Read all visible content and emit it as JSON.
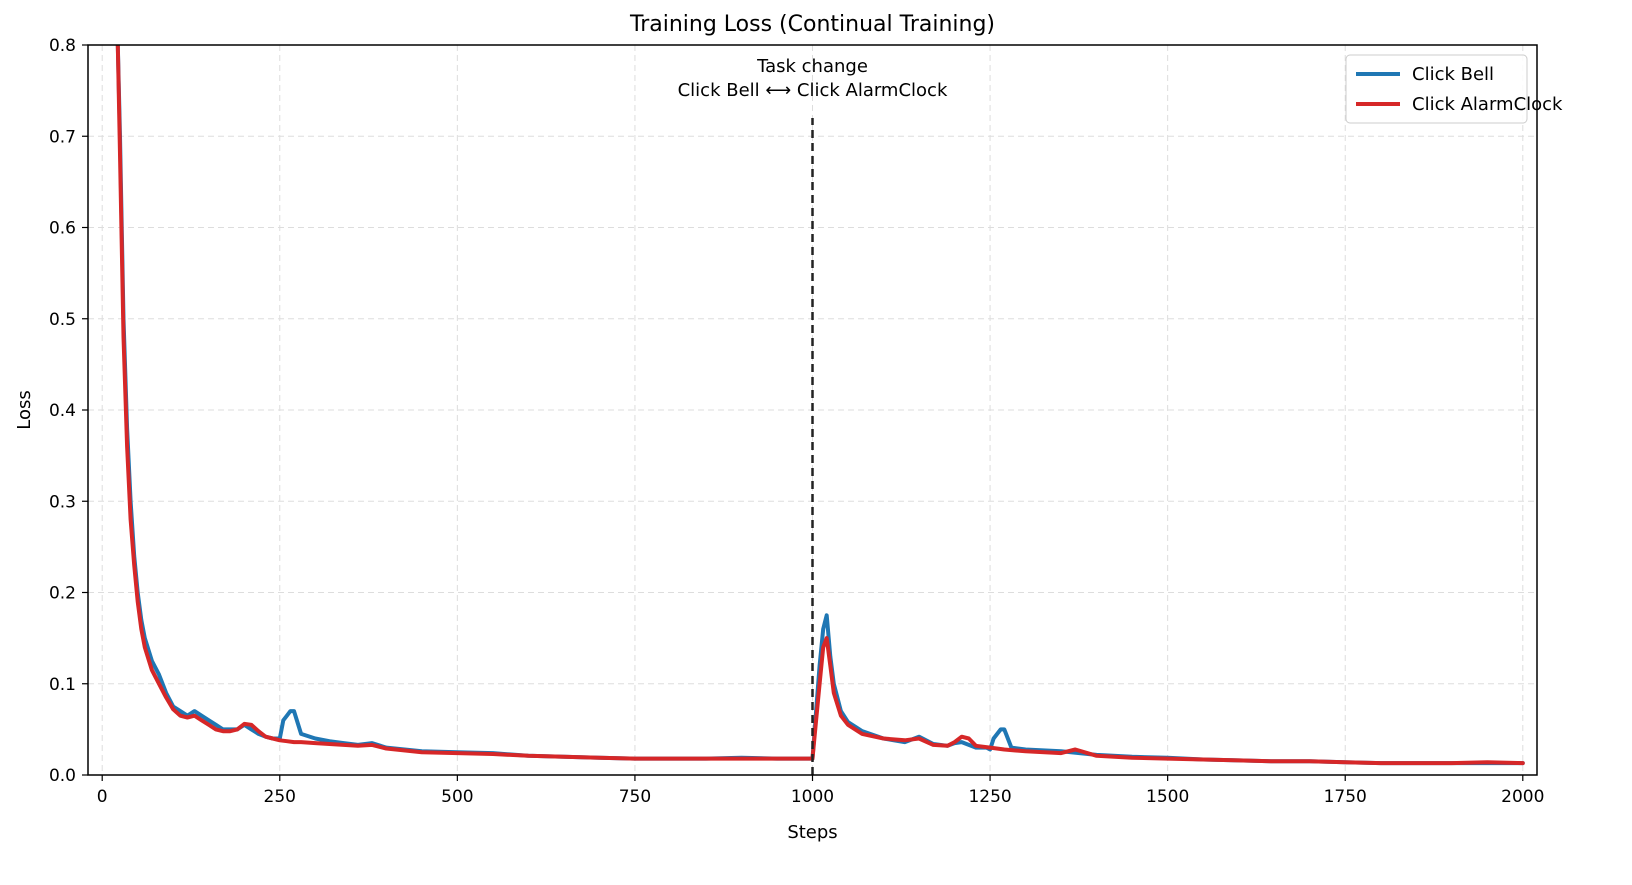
{
  "chart_data": {
    "type": "line",
    "title": "Training Loss (Continual Training)",
    "xlabel": "Steps",
    "ylabel": "Loss",
    "xlim": [
      -20,
      2020
    ],
    "ylim": [
      0.0,
      0.8
    ],
    "xticks": [
      0,
      250,
      500,
      750,
      1000,
      1250,
      1500,
      1750,
      2000
    ],
    "yticks": [
      0.0,
      0.1,
      0.2,
      0.3,
      0.4,
      0.5,
      0.6,
      0.7,
      0.8
    ],
    "xtick_labels": [
      "0",
      "250",
      "500",
      "750",
      "1000",
      "1250",
      "1500",
      "1750",
      "2000"
    ],
    "ytick_labels": [
      "0.0",
      "0.1",
      "0.2",
      "0.3",
      "0.4",
      "0.5",
      "0.6",
      "0.7",
      "0.8"
    ],
    "grid": true,
    "legend_position": "top-right",
    "annotation": {
      "line1": "Task change",
      "line2": "Click Bell ⟷ Click AlarmClock",
      "x": 1000,
      "y_from": 0.0,
      "y_to": 0.72
    },
    "series": [
      {
        "name": "Click Bell",
        "color": "#1f77b4",
        "x": [
          22,
          25,
          30,
          35,
          40,
          45,
          50,
          55,
          60,
          70,
          80,
          90,
          100,
          110,
          120,
          130,
          140,
          150,
          160,
          170,
          180,
          190,
          200,
          210,
          220,
          230,
          240,
          250,
          255,
          260,
          265,
          270,
          280,
          300,
          320,
          340,
          360,
          380,
          400,
          450,
          500,
          550,
          600,
          650,
          700,
          750,
          800,
          850,
          900,
          950,
          1000,
          1005,
          1010,
          1015,
          1020,
          1025,
          1030,
          1040,
          1050,
          1070,
          1100,
          1130,
          1150,
          1170,
          1190,
          1200,
          1210,
          1230,
          1245,
          1250,
          1255,
          1260,
          1265,
          1270,
          1280,
          1300,
          1350,
          1400,
          1450,
          1500,
          1550,
          1600,
          1650,
          1700,
          1750,
          1800,
          1850,
          1900,
          1950,
          2000
        ],
        "values": [
          0.8,
          0.7,
          0.5,
          0.38,
          0.3,
          0.24,
          0.2,
          0.17,
          0.15,
          0.125,
          0.11,
          0.09,
          0.075,
          0.07,
          0.065,
          0.07,
          0.065,
          0.06,
          0.055,
          0.05,
          0.05,
          0.05,
          0.055,
          0.05,
          0.045,
          0.042,
          0.04,
          0.04,
          0.06,
          0.065,
          0.07,
          0.07,
          0.045,
          0.04,
          0.037,
          0.035,
          0.033,
          0.035,
          0.03,
          0.026,
          0.025,
          0.024,
          0.021,
          0.02,
          0.019,
          0.018,
          0.018,
          0.018,
          0.019,
          0.018,
          0.018,
          0.07,
          0.12,
          0.16,
          0.175,
          0.13,
          0.1,
          0.07,
          0.058,
          0.048,
          0.04,
          0.036,
          0.042,
          0.034,
          0.032,
          0.035,
          0.036,
          0.03,
          0.03,
          0.028,
          0.04,
          0.045,
          0.05,
          0.05,
          0.03,
          0.028,
          0.026,
          0.022,
          0.02,
          0.019,
          0.017,
          0.016,
          0.015,
          0.015,
          0.014,
          0.013,
          0.013,
          0.013,
          0.013,
          0.013
        ]
      },
      {
        "name": "Click AlarmClock",
        "color": "#d62728",
        "x": [
          22,
          25,
          30,
          35,
          40,
          45,
          50,
          55,
          60,
          70,
          80,
          90,
          100,
          110,
          120,
          130,
          140,
          150,
          160,
          170,
          180,
          190,
          200,
          210,
          220,
          230,
          240,
          250,
          260,
          270,
          280,
          300,
          320,
          340,
          360,
          380,
          400,
          450,
          500,
          550,
          600,
          650,
          700,
          750,
          800,
          850,
          900,
          950,
          1000,
          1005,
          1010,
          1015,
          1020,
          1025,
          1030,
          1040,
          1050,
          1070,
          1100,
          1130,
          1150,
          1170,
          1190,
          1200,
          1210,
          1220,
          1230,
          1250,
          1270,
          1300,
          1350,
          1370,
          1400,
          1450,
          1500,
          1550,
          1600,
          1650,
          1700,
          1750,
          1800,
          1850,
          1900,
          1950,
          2000
        ],
        "values": [
          0.8,
          0.68,
          0.48,
          0.36,
          0.28,
          0.23,
          0.19,
          0.16,
          0.14,
          0.115,
          0.1,
          0.085,
          0.072,
          0.065,
          0.063,
          0.065,
          0.06,
          0.055,
          0.05,
          0.048,
          0.048,
          0.05,
          0.056,
          0.055,
          0.048,
          0.042,
          0.04,
          0.038,
          0.037,
          0.036,
          0.036,
          0.035,
          0.034,
          0.033,
          0.032,
          0.033,
          0.029,
          0.025,
          0.024,
          0.023,
          0.021,
          0.02,
          0.019,
          0.018,
          0.018,
          0.018,
          0.018,
          0.018,
          0.018,
          0.06,
          0.1,
          0.14,
          0.15,
          0.12,
          0.09,
          0.065,
          0.055,
          0.045,
          0.04,
          0.038,
          0.04,
          0.033,
          0.032,
          0.036,
          0.042,
          0.04,
          0.032,
          0.03,
          0.028,
          0.026,
          0.024,
          0.028,
          0.021,
          0.019,
          0.018,
          0.017,
          0.016,
          0.015,
          0.015,
          0.014,
          0.013,
          0.013,
          0.013,
          0.014,
          0.013
        ]
      }
    ]
  }
}
